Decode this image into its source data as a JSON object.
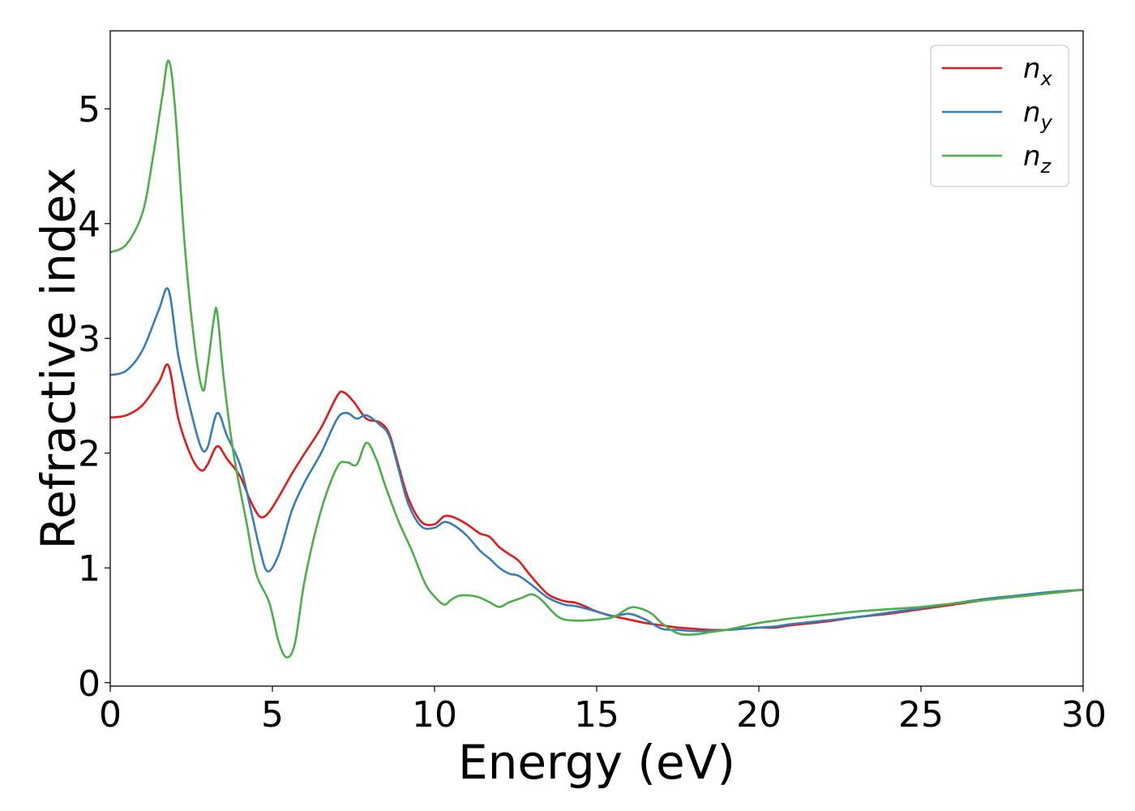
{
  "chart_data": {
    "type": "line",
    "xlabel": "Energy (eV)",
    "ylabel": "Refractive index",
    "xlim": [
      0,
      30
    ],
    "ylim": [
      -0.03,
      5.68
    ],
    "xticks": [
      0,
      5,
      10,
      15,
      20,
      25,
      30
    ],
    "yticks": [
      0,
      1,
      2,
      3,
      4,
      5
    ],
    "grid": false,
    "legend_position": "top-right",
    "series": [
      {
        "name": "n_x",
        "label_base": "n",
        "label_sub": "x",
        "color": "#e41a1c",
        "x": [
          0,
          0.5,
          1.0,
          1.5,
          1.8,
          2.1,
          2.5,
          2.8,
          3.0,
          3.3,
          3.6,
          4.0,
          4.3,
          4.6,
          4.85,
          5.2,
          5.6,
          6.0,
          6.5,
          7.0,
          7.2,
          7.5,
          7.9,
          8.3,
          8.6,
          8.9,
          9.2,
          9.6,
          10.0,
          10.3,
          10.6,
          11.0,
          11.4,
          11.7,
          12.0,
          12.3,
          12.6,
          13.0,
          13.5,
          14.0,
          14.3,
          14.6,
          15.0,
          15.5,
          16.0,
          16.5,
          17.0,
          17.5,
          18.0,
          18.5,
          19.0,
          19.5,
          20.0,
          20.5,
          21.0,
          22.0,
          23.0,
          24.0,
          25.0,
          26.0,
          27.0,
          28.0,
          29.0,
          30.0
        ],
        "y": [
          2.31,
          2.33,
          2.42,
          2.62,
          2.76,
          2.3,
          1.97,
          1.85,
          1.9,
          2.06,
          1.95,
          1.8,
          1.6,
          1.45,
          1.47,
          1.62,
          1.82,
          2.0,
          2.22,
          2.5,
          2.53,
          2.45,
          2.3,
          2.27,
          2.17,
          1.88,
          1.6,
          1.4,
          1.38,
          1.45,
          1.44,
          1.38,
          1.3,
          1.27,
          1.18,
          1.12,
          1.06,
          0.92,
          0.77,
          0.71,
          0.7,
          0.67,
          0.62,
          0.58,
          0.55,
          0.52,
          0.5,
          0.48,
          0.47,
          0.46,
          0.46,
          0.47,
          0.48,
          0.48,
          0.5,
          0.53,
          0.57,
          0.6,
          0.64,
          0.68,
          0.72,
          0.75,
          0.78,
          0.81
        ]
      },
      {
        "name": "n_y",
        "label_base": "n",
        "label_sub": "y",
        "color": "#377eb8",
        "x": [
          0,
          0.5,
          1.0,
          1.5,
          1.8,
          2.1,
          2.5,
          2.8,
          3.0,
          3.3,
          3.6,
          4.0,
          4.3,
          4.6,
          4.85,
          5.2,
          5.6,
          6.0,
          6.5,
          7.0,
          7.3,
          7.6,
          7.9,
          8.3,
          8.6,
          8.9,
          9.2,
          9.6,
          10.0,
          10.3,
          10.6,
          11.0,
          11.4,
          11.7,
          12.0,
          12.3,
          12.6,
          13.0,
          13.5,
          14.0,
          14.3,
          14.6,
          15.0,
          15.5,
          16.0,
          16.5,
          17.0,
          17.5,
          18.0,
          18.5,
          19.0,
          19.5,
          20.0,
          20.5,
          21.0,
          22.0,
          23.0,
          24.0,
          25.0,
          26.0,
          27.0,
          28.0,
          29.0,
          30.0
        ],
        "y": [
          2.68,
          2.72,
          2.9,
          3.25,
          3.42,
          2.85,
          2.35,
          2.05,
          2.05,
          2.35,
          2.15,
          1.9,
          1.55,
          1.18,
          0.97,
          1.12,
          1.5,
          1.75,
          2.0,
          2.3,
          2.35,
          2.3,
          2.33,
          2.25,
          2.15,
          1.85,
          1.55,
          1.36,
          1.35,
          1.4,
          1.37,
          1.28,
          1.15,
          1.08,
          1.0,
          0.95,
          0.93,
          0.85,
          0.74,
          0.68,
          0.67,
          0.65,
          0.62,
          0.58,
          0.6,
          0.55,
          0.47,
          0.46,
          0.45,
          0.45,
          0.46,
          0.47,
          0.48,
          0.49,
          0.51,
          0.54,
          0.57,
          0.61,
          0.65,
          0.69,
          0.73,
          0.76,
          0.79,
          0.81
        ]
      },
      {
        "name": "n_z",
        "label_base": "n",
        "label_sub": "z",
        "color": "#4daf4a",
        "x": [
          0,
          0.5,
          1.0,
          1.3,
          1.6,
          1.8,
          2.0,
          2.3,
          2.6,
          2.85,
          3.0,
          3.2,
          3.3,
          3.5,
          3.8,
          4.2,
          4.5,
          4.9,
          5.2,
          5.45,
          5.7,
          6.0,
          6.5,
          7.0,
          7.3,
          7.6,
          7.9,
          8.2,
          8.5,
          8.9,
          9.3,
          9.7,
          10.0,
          10.3,
          10.5,
          10.8,
          11.3,
          11.7,
          12.0,
          12.3,
          12.7,
          13.0,
          13.3,
          13.7,
          14.0,
          14.5,
          15.0,
          15.5,
          16.0,
          16.3,
          16.7,
          17.0,
          17.5,
          18.0,
          18.5,
          19.0,
          19.5,
          20.0,
          20.5,
          21.0,
          22.0,
          23.0,
          24.0,
          25.0,
          26.0,
          27.0,
          28.0,
          29.0,
          30.0
        ],
        "y": [
          3.75,
          3.82,
          4.1,
          4.55,
          5.1,
          5.42,
          5.0,
          3.8,
          2.95,
          2.55,
          2.75,
          3.18,
          3.22,
          2.65,
          2.0,
          1.4,
          0.95,
          0.7,
          0.35,
          0.22,
          0.35,
          0.9,
          1.5,
          1.88,
          1.92,
          1.9,
          2.09,
          1.95,
          1.7,
          1.4,
          1.15,
          0.87,
          0.75,
          0.68,
          0.72,
          0.76,
          0.75,
          0.7,
          0.66,
          0.7,
          0.74,
          0.77,
          0.72,
          0.6,
          0.55,
          0.54,
          0.55,
          0.57,
          0.65,
          0.65,
          0.6,
          0.52,
          0.43,
          0.42,
          0.44,
          0.46,
          0.49,
          0.52,
          0.54,
          0.56,
          0.59,
          0.62,
          0.64,
          0.66,
          0.69,
          0.72,
          0.75,
          0.78,
          0.81
        ]
      }
    ]
  }
}
